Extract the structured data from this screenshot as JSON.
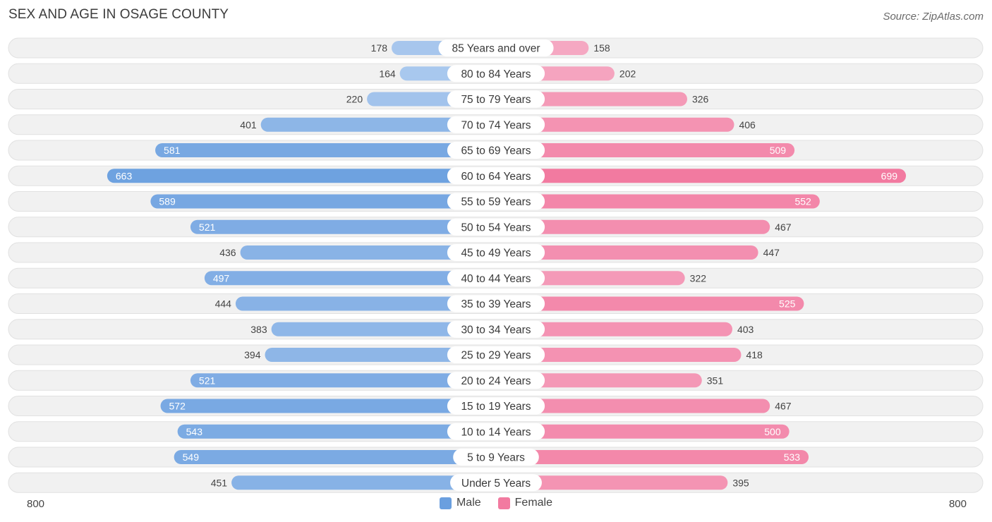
{
  "header": {
    "title": "SEX AND AGE IN OSAGE COUNTY",
    "source": "Source: ZipAtlas.com"
  },
  "colors": {
    "male_strong": "#6a9fdf",
    "male_light": "#a9c8ee",
    "female_strong": "#f27aa0",
    "female_light": "#f5a8c2",
    "row_bg": "#f1f1f1",
    "row_border": "#e1e1e1"
  },
  "chart_data": {
    "type": "bar",
    "orientation": "horizontal-diverging",
    "categories": [
      "85 Years and over",
      "80 to 84 Years",
      "75 to 79 Years",
      "70 to 74 Years",
      "65 to 69 Years",
      "60 to 64 Years",
      "55 to 59 Years",
      "50 to 54 Years",
      "45 to 49 Years",
      "40 to 44 Years",
      "35 to 39 Years",
      "30 to 34 Years",
      "25 to 29 Years",
      "20 to 24 Years",
      "15 to 19 Years",
      "10 to 14 Years",
      "5 to 9 Years",
      "Under 5 Years"
    ],
    "series": [
      {
        "name": "Male",
        "values": [
          178,
          164,
          220,
          401,
          581,
          663,
          589,
          521,
          436,
          497,
          444,
          383,
          394,
          521,
          572,
          543,
          549,
          451
        ]
      },
      {
        "name": "Female",
        "values": [
          158,
          202,
          326,
          406,
          509,
          699,
          552,
          467,
          447,
          322,
          525,
          403,
          418,
          351,
          467,
          500,
          533,
          395
        ]
      }
    ],
    "xlim": [
      -800,
      800
    ],
    "axis_min_label": "800",
    "axis_max_label": "800",
    "legend_position": "bottom-center"
  }
}
